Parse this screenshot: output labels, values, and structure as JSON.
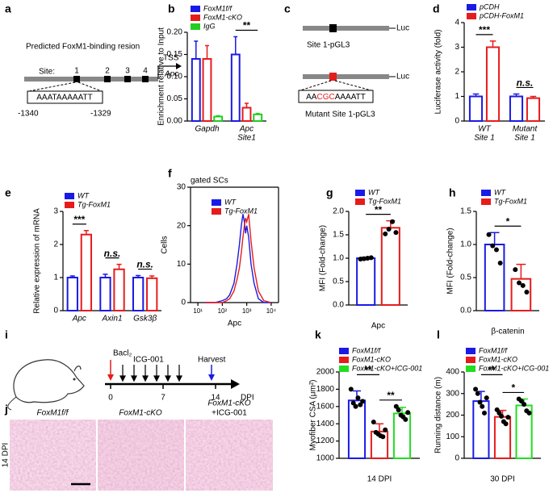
{
  "panels": [
    "a",
    "b",
    "c",
    "d",
    "e",
    "f",
    "g",
    "h",
    "i",
    "j",
    "k",
    "l"
  ],
  "diagram_a": {
    "title": "Predicted FoxM1-binding resion",
    "tss": "TSS",
    "gene": "Apc",
    "site_label": "Site:",
    "sites": [
      "1",
      "2",
      "3",
      "4"
    ],
    "sequence": "AAATAAAAATT",
    "start": "-1340",
    "end": "-1329"
  },
  "diagram_c": {
    "wt": "Site 1-pGL3",
    "luc": "Luc",
    "luc_mutant": "Luc",
    "mutant_seq": [
      "AA",
      "CGC",
      "AAAATT"
    ],
    "mutant": "Mutant Site 1-pGL3"
  },
  "diagram_i": {
    "bacl": "Bacl₂",
    "icg": "ICG-001",
    "harvest": "Harvest",
    "days": [
      "0",
      "7",
      "14"
    ],
    "unit": "DPI"
  },
  "images_j": {
    "labels": [
      [
        "FoxM1f/f"
      ],
      [
        "FoxM1-cKO"
      ],
      [
        "FoxM1-cKO",
        "+ICG-001"
      ]
    ],
    "side": "14 DPI"
  },
  "chart_data": [
    {
      "type": "bar",
      "ylabel": "Enrichment relative to Input",
      "categories": [
        [
          "Gapdh"
        ],
        [
          "Apc",
          "Site1"
        ]
      ],
      "series": [
        {
          "name": "FoxM1f/f",
          "color": "#1a1ae6",
          "values": [
            0.14,
            0.15
          ],
          "errors": [
            0.04,
            0.04
          ]
        },
        {
          "name": "FoxM1-cKO",
          "color": "#e61c1c",
          "values": [
            0.14,
            0.03
          ],
          "errors": [
            0.03,
            0.01
          ]
        },
        {
          "name": "IgG",
          "color": "#22cc22",
          "values": [
            0.01,
            0.015
          ],
          "errors": [
            0.002,
            0.002
          ]
        }
      ],
      "ylim": [
        0,
        0.2
      ],
      "yticks": [
        {
          "value": 0,
          "label": "0.00"
        },
        {
          "value": 0.05,
          "label": "0.05"
        },
        {
          "value": 0.1,
          "label": "0.10"
        },
        {
          "value": 0.15,
          "label": "0.15"
        },
        {
          "value": 0.2,
          "label": "0.20"
        }
      ],
      "annotations": [
        null,
        "**"
      ]
    },
    {
      "type": "bar",
      "ylabel": "Luciferase activity (fold)",
      "categories": [
        [
          "WT",
          "Site 1"
        ],
        [
          "Mutant",
          "Site 1"
        ]
      ],
      "series": [
        {
          "name": "pCDH",
          "color": "#1a1ae6",
          "values": [
            1.0,
            1.0
          ],
          "errors": [
            0.1,
            0.1
          ]
        },
        {
          "name": "pCDH-FoxM1",
          "color": "#e61c1c",
          "values": [
            3.0,
            0.93
          ],
          "errors": [
            0.25,
            0.07
          ]
        }
      ],
      "ylim": [
        0,
        4
      ],
      "yticks": [
        0,
        1,
        2,
        3,
        4
      ],
      "annotations": [
        "***",
        "n.s."
      ]
    },
    {
      "type": "bar",
      "ylabel": "Relative expression of mRNA",
      "categories": [
        [
          "Apc"
        ],
        [
          "Axin1"
        ],
        [
          "Gsk3β"
        ]
      ],
      "series": [
        {
          "name": "WT",
          "color": "#1a1ae6",
          "values": [
            1.0,
            1.0,
            1.0
          ],
          "errors": [
            0.05,
            0.1,
            0.06
          ]
        },
        {
          "name": "Tg-FoxM1",
          "color": "#e61c1c",
          "values": [
            2.3,
            1.25,
            0.98
          ],
          "errors": [
            0.12,
            0.15,
            0.07
          ]
        }
      ],
      "ylim": [
        0,
        3
      ],
      "yticks": [
        0,
        1,
        2,
        3
      ],
      "annotations": [
        "***",
        "n.s.",
        "n.s."
      ]
    },
    {
      "type": "line",
      "subtitle": "gated SCs",
      "ylabel": "Cells",
      "xlabel": "Apc",
      "log_x": true,
      "x": [
        20,
        50,
        100,
        150,
        200,
        300,
        400,
        500,
        600,
        700,
        800,
        900,
        1000,
        1200,
        1500,
        2000,
        3000,
        5000,
        10000
      ],
      "series": [
        {
          "name": "WT",
          "color": "#1a1ae6",
          "values": [
            0,
            0,
            0.5,
            1,
            2,
            5,
            10,
            15,
            20,
            23,
            21,
            18,
            20,
            17,
            10,
            5,
            1,
            0,
            0
          ]
        },
        {
          "name": "Tg-FoxM1",
          "color": "#e61c1c",
          "values": [
            0,
            0,
            0,
            0.5,
            1,
            3,
            6,
            9,
            13,
            17,
            20,
            22,
            21,
            23,
            16,
            9,
            3,
            0.5,
            0
          ]
        }
      ],
      "xlim": [
        5,
        20000
      ],
      "xticks": [
        {
          "value": 10,
          "label": "10¹"
        },
        {
          "value": 100,
          "label": "10²"
        },
        {
          "value": 1000,
          "label": "10³"
        },
        {
          "value": 10000,
          "label": "10⁴"
        }
      ],
      "ylim": [
        0,
        30
      ],
      "yticks": [
        0,
        10,
        20,
        30
      ]
    },
    {
      "type": "bar",
      "ylabel": "MFI (Fold-change)",
      "xlabel": "Apc",
      "series": [
        {
          "name": "WT",
          "color": "#1a1ae6",
          "values": [
            1.0
          ],
          "errors": [
            0.02
          ],
          "points": [
            0.98,
            0.99,
            1.0,
            1.01
          ]
        },
        {
          "name": "Tg-FoxM1",
          "color": "#e61c1c",
          "values": [
            1.65
          ],
          "errors": [
            0.15
          ],
          "points": [
            1.52,
            1.62,
            1.78,
            1.55
          ]
        }
      ],
      "ylim": [
        0,
        2
      ],
      "yticks": [
        {
          "value": 0,
          "label": "0.0"
        },
        {
          "value": 0.5,
          "label": "0.5"
        },
        {
          "value": 1,
          "label": "1.0"
        },
        {
          "value": 1.5,
          "label": "1.5"
        },
        {
          "value": 2,
          "label": "2.0"
        }
      ],
      "annotations": [
        "**"
      ]
    },
    {
      "type": "bar",
      "ylabel": "MFI (Fold-change)",
      "xlabel": "β-catenin",
      "series": [
        {
          "name": "WT",
          "color": "#1a1ae6",
          "values": [
            1.0
          ],
          "errors": [
            0.18
          ],
          "points": [
            1.15,
            0.98,
            0.92,
            0.72
          ]
        },
        {
          "name": "Tg-FoxM1",
          "color": "#e61c1c",
          "values": [
            0.48
          ],
          "errors": [
            0.22
          ],
          "points": [
            0.62,
            0.42,
            0.38,
            0.28
          ]
        }
      ],
      "ylim": [
        0,
        1.5
      ],
      "yticks": [
        {
          "value": 0,
          "label": "0.0"
        },
        {
          "value": 0.5,
          "label": "0.5"
        },
        {
          "value": 1,
          "label": "1.0"
        },
        {
          "value": 1.5,
          "label": "1.5"
        }
      ],
      "annotations": [
        "*"
      ]
    },
    {
      "type": "bar",
      "ylabel": "Myofiber CSA (μm²)",
      "xlabel": "14 DPI",
      "series": [
        {
          "name": "FoxM1f/f",
          "color": "#1a1ae6",
          "values": [
            1670
          ],
          "errors": [
            110
          ],
          "points": [
            1800,
            1640,
            1600,
            1700,
            1620,
            1660
          ]
        },
        {
          "name": "FoxM1-cKO",
          "color": "#e61c1c",
          "values": [
            1310
          ],
          "errors": [
            90
          ],
          "points": [
            1420,
            1300,
            1280,
            1260,
            1250,
            1330
          ]
        },
        {
          "name": "FoxM1-cKO+ICG-001",
          "color": "#22dd22",
          "values": [
            1520
          ],
          "errors": [
            70
          ],
          "points": [
            1600,
            1560,
            1500,
            1480,
            1450,
            1530
          ]
        }
      ],
      "ylim": [
        1000,
        2000
      ],
      "yticks": [
        1000,
        1200,
        1400,
        1600,
        1800,
        2000
      ],
      "annotations": [
        "**",
        "**"
      ]
    },
    {
      "type": "bar",
      "ylabel": "Running distance (m)",
      "xlabel": "30 DPI",
      "series": [
        {
          "name": "FoxM1f/f",
          "color": "#1a1ae6",
          "values": [
            265
          ],
          "errors": [
            45
          ],
          "points": [
            320,
            300,
            260,
            240,
            210,
            280
          ]
        },
        {
          "name": "FoxM1-cKO",
          "color": "#e61c1c",
          "values": [
            192
          ],
          "errors": [
            30
          ],
          "points": [
            225,
            210,
            195,
            170,
            160,
            190
          ]
        },
        {
          "name": "FoxM1-cKO+ICG-001",
          "color": "#22dd22",
          "values": [
            245
          ],
          "errors": [
            30
          ],
          "points": [
            275,
            265,
            250,
            220,
            210
          ]
        }
      ],
      "ylim": [
        0,
        400
      ],
      "yticks": [
        0,
        100,
        200,
        300,
        400
      ],
      "annotations": [
        "**",
        "*"
      ]
    }
  ]
}
